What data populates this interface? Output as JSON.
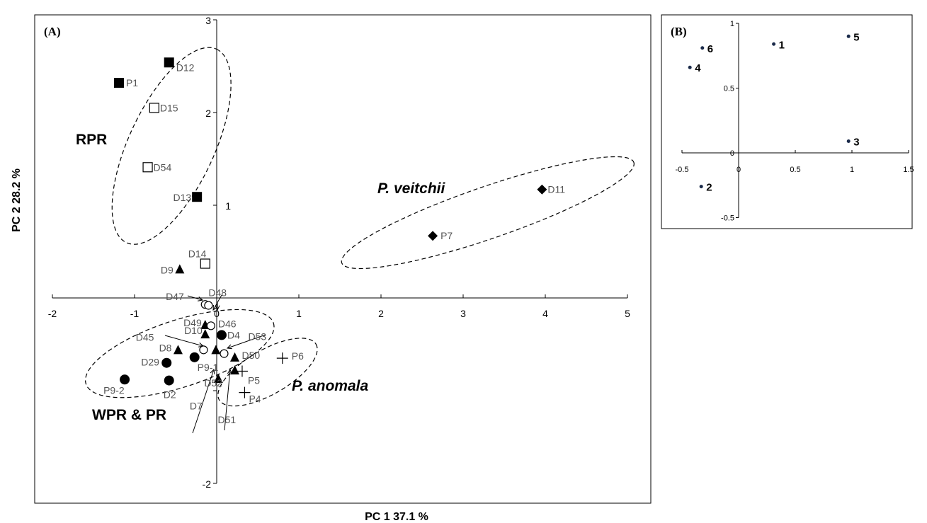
{
  "chart_data": [
    {
      "panel": "(A)",
      "type": "scatter",
      "xlabel": "PC 1  37.1 %",
      "ylabel": "PC 2  28.2 %",
      "xlim": [
        -2,
        5
      ],
      "ylim": [
        -2,
        3
      ],
      "x_ticks": [
        "-2",
        "-1",
        "0",
        "1",
        "2",
        "3",
        "4",
        "5"
      ],
      "y_ticks": [
        "-2",
        "1",
        "2",
        "3"
      ],
      "points": [
        {
          "label": "P1",
          "x": -1.19,
          "y": 2.32,
          "marker": "square-filled"
        },
        {
          "label": "D12",
          "x": -0.58,
          "y": 2.54,
          "marker": "square-filled"
        },
        {
          "label": "D15",
          "x": -0.76,
          "y": 2.05,
          "marker": "square-open"
        },
        {
          "label": "D54",
          "x": -0.84,
          "y": 1.41,
          "marker": "square-open"
        },
        {
          "label": "D13",
          "x": -0.24,
          "y": 1.09,
          "marker": "square-filled"
        },
        {
          "label": "D14",
          "x": -0.14,
          "y": 0.37,
          "marker": "square-open"
        },
        {
          "label": "D9",
          "x": -0.45,
          "y": 0.31,
          "marker": "triangle-filled"
        },
        {
          "label": "D11",
          "x": 3.96,
          "y": 1.17,
          "marker": "diamond-filled"
        },
        {
          "label": "P7",
          "x": 2.63,
          "y": 0.67,
          "marker": "diamond-filled"
        },
        {
          "label": "D47",
          "x": -0.14,
          "y": -0.07,
          "marker": "circle-open"
        },
        {
          "label": "D48",
          "x": -0.1,
          "y": -0.08,
          "marker": "circle-open"
        },
        {
          "label": "D49",
          "x": -0.14,
          "y": -0.29,
          "marker": "triangle-filled"
        },
        {
          "label": "D46",
          "x": -0.07,
          "y": -0.3,
          "marker": "circle-open"
        },
        {
          "label": "D10",
          "x": -0.14,
          "y": -0.39,
          "marker": "triangle-filled"
        },
        {
          "label": "D4",
          "x": 0.06,
          "y": -0.4,
          "marker": "circle-filled"
        },
        {
          "label": "D45",
          "x": -0.16,
          "y": -0.56,
          "marker": "circle-open"
        },
        {
          "label": "D53",
          "x": 0.09,
          "y": -0.6,
          "marker": "circle-open"
        },
        {
          "label": "D8",
          "x": -0.47,
          "y": -0.56,
          "marker": "triangle-filled"
        },
        {
          "label": "D7",
          "x": -0.01,
          "y": -0.56,
          "marker": "triangle-filled"
        },
        {
          "label": "P9-1",
          "x": -0.27,
          "y": -0.64,
          "marker": "circle-filled"
        },
        {
          "label": "D29",
          "x": -0.61,
          "y": -0.7,
          "marker": "circle-filled"
        },
        {
          "label": "D50",
          "x": 0.22,
          "y": -0.64,
          "marker": "triangle-filled"
        },
        {
          "label": "P6",
          "x": 0.8,
          "y": -0.65,
          "marker": "plus"
        },
        {
          "label": "D51",
          "x": 0.22,
          "y": -0.78,
          "marker": "triangle-filled"
        },
        {
          "label": "P5",
          "x": 0.31,
          "y": -0.79,
          "marker": "plus"
        },
        {
          "label": "P9-2",
          "x": -1.12,
          "y": -0.88,
          "marker": "circle-filled"
        },
        {
          "label": "D2",
          "x": -0.58,
          "y": -0.89,
          "marker": "circle-filled"
        },
        {
          "label": "D52",
          "x": 0.02,
          "y": -0.87,
          "marker": "triangle-filled"
        },
        {
          "label": "P4",
          "x": 0.34,
          "y": -1.02,
          "marker": "plus"
        }
      ],
      "groups": [
        {
          "name": "RPR"
        },
        {
          "name": "P. veitchii"
        },
        {
          "name": "WPR & PR"
        },
        {
          "name": "P. anomala"
        }
      ]
    },
    {
      "panel": "(B)",
      "type": "scatter",
      "xlim": [
        -0.5,
        1.5
      ],
      "ylim": [
        -0.5,
        1
      ],
      "x_ticks": [
        "-0.5",
        "0",
        "0.5",
        "1",
        "1.5"
      ],
      "y_ticks": [
        "-0.5",
        "0",
        "0.5",
        "1"
      ],
      "points": [
        {
          "label": "1",
          "x": 0.31,
          "y": 0.84
        },
        {
          "label": "2",
          "x": -0.33,
          "y": -0.26
        },
        {
          "label": "3",
          "x": 0.97,
          "y": 0.09
        },
        {
          "label": "4",
          "x": -0.43,
          "y": 0.66
        },
        {
          "label": "5",
          "x": 0.97,
          "y": 0.9
        },
        {
          "label": "6",
          "x": -0.32,
          "y": 0.81
        }
      ]
    }
  ]
}
